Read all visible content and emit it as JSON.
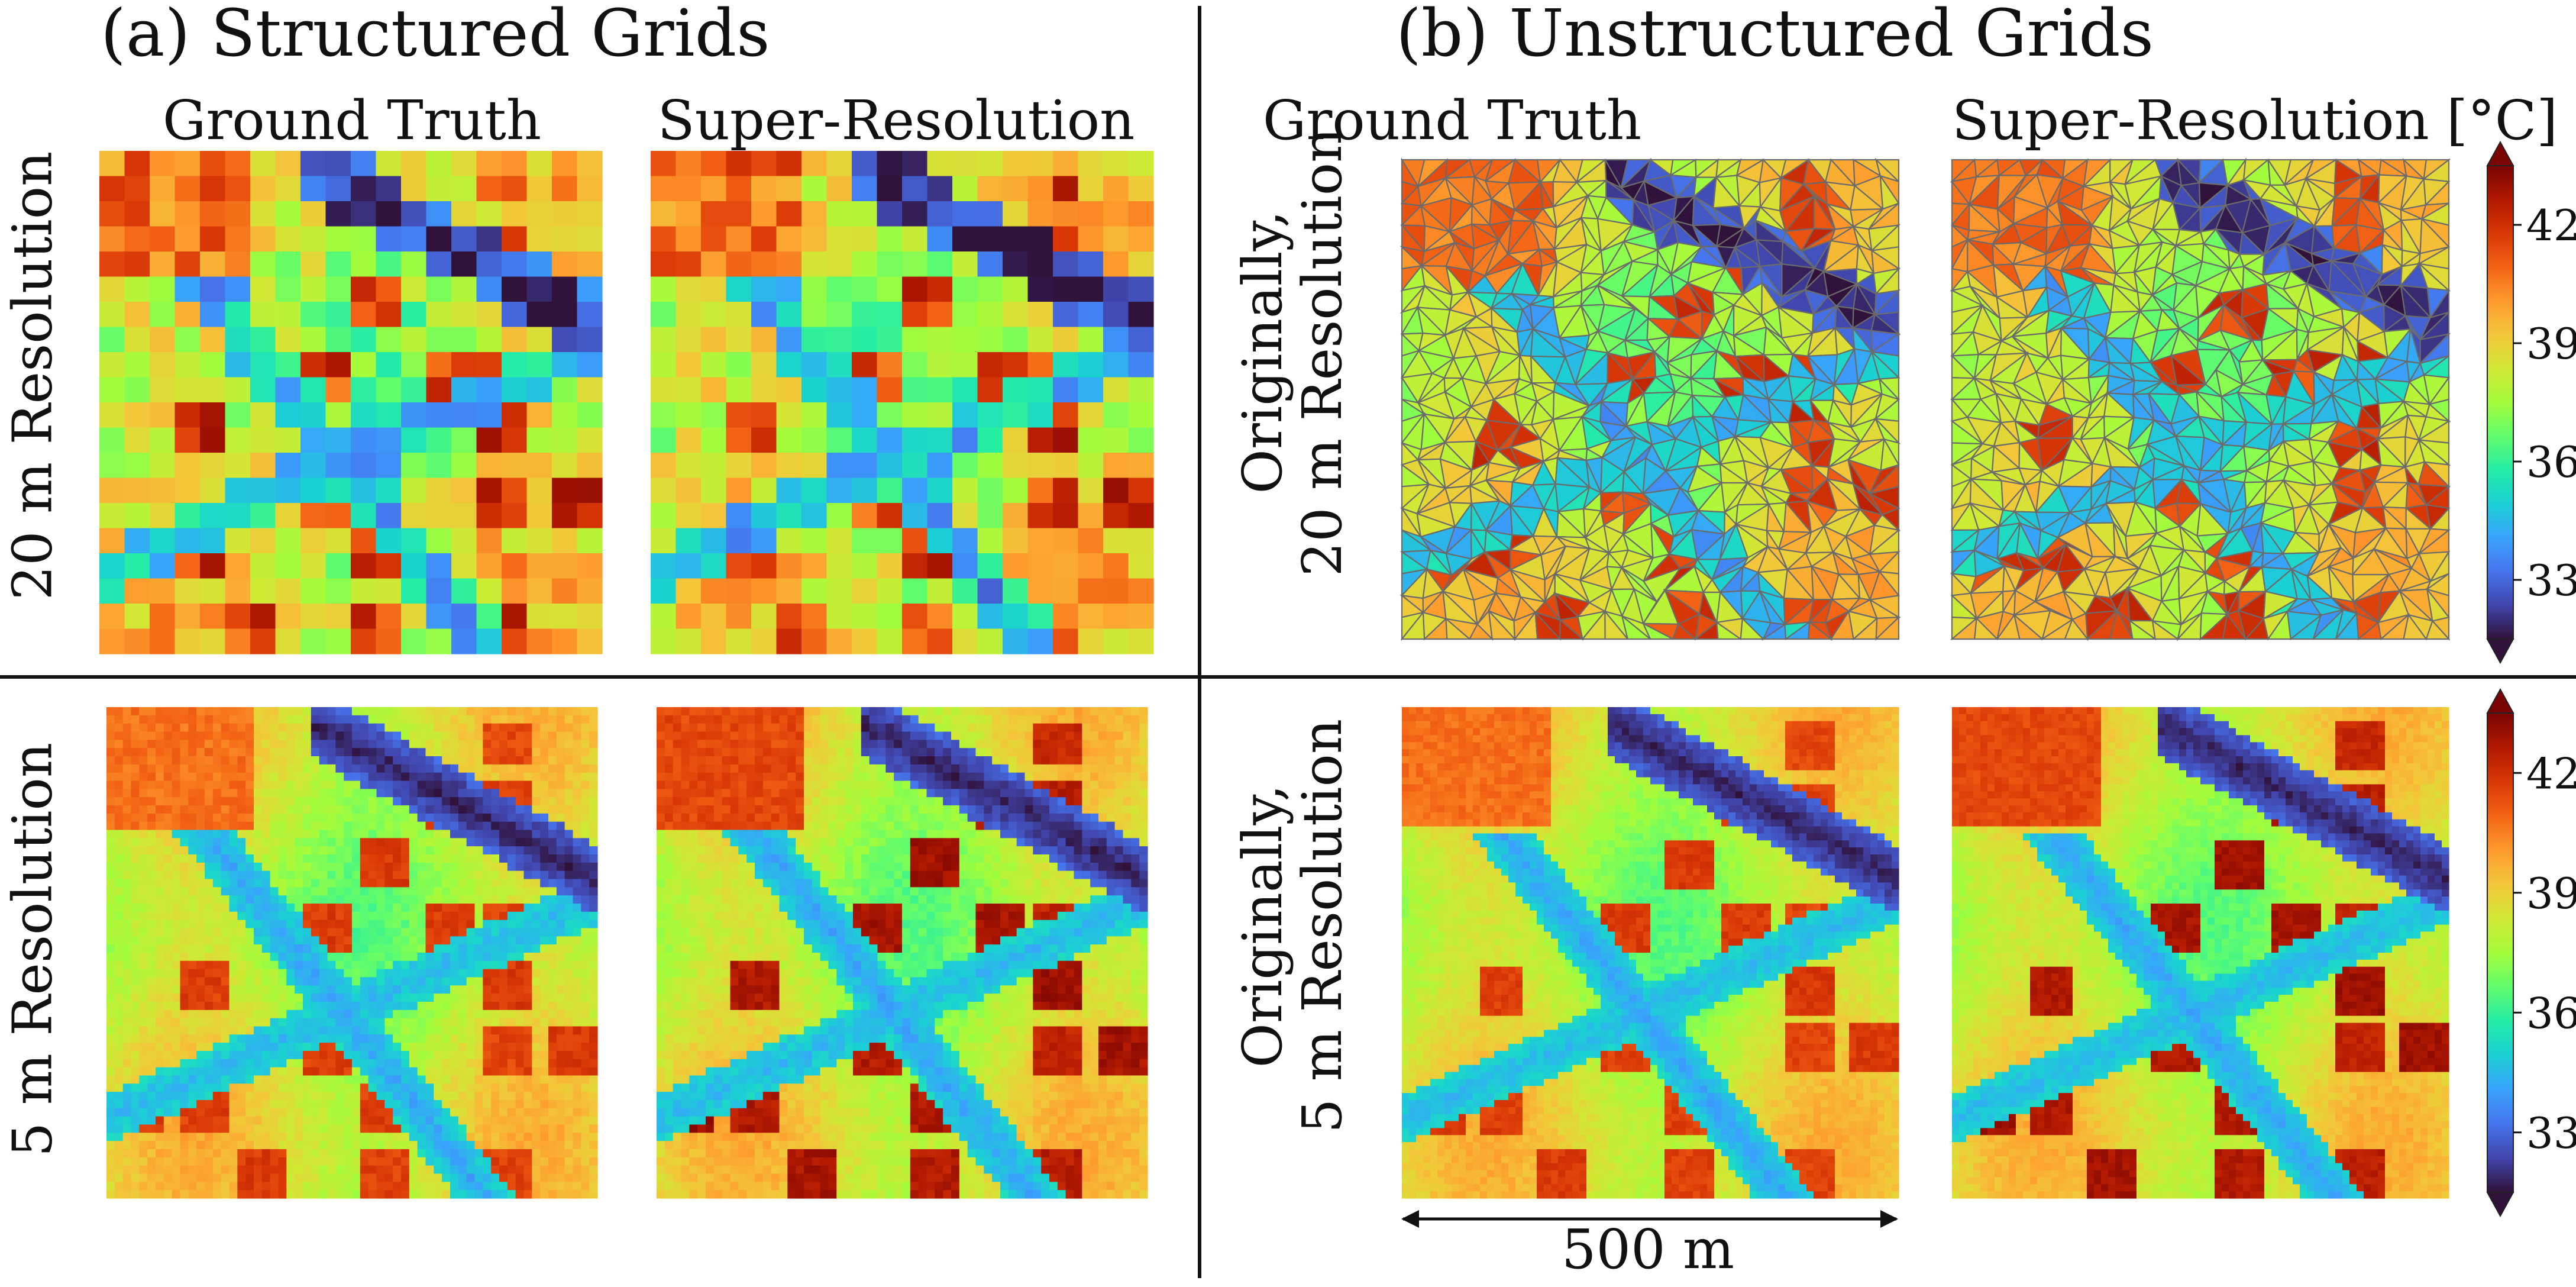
{
  "figure": {
    "section_a_title": "(a) Structured Grids",
    "section_b_title": "(b) Unstructured Grids",
    "col_ground_truth": "Ground Truth",
    "col_super_resolution": "Super-Resolution",
    "col_super_resolution_unit": "Super-Resolution [°C]",
    "row_a1": "20 m Resolution",
    "row_a2": "5 m Resolution",
    "row_b1_line1": "Originally,",
    "row_b1_line2": "20 m Resolution",
    "row_b2_line1": "Originally,",
    "row_b2_line2": "5 m Resolution",
    "scale_label": "500 m"
  },
  "colorbar": {
    "unit": "[°C]",
    "ticks": [
      {
        "label": "42",
        "value": 42
      },
      {
        "label": "39",
        "value": 39
      },
      {
        "label": "36",
        "value": 36
      },
      {
        "label": "33",
        "value": 33
      }
    ],
    "range": [
      31.5,
      43.5
    ],
    "colormap_stops": [
      "#30123b",
      "#4145ab",
      "#4675ed",
      "#39a2fc",
      "#1bcfd4",
      "#24eca6",
      "#61fc6c",
      "#a4fc3b",
      "#d1e834",
      "#f3c63a",
      "#fe9b2d",
      "#f36315",
      "#d93806",
      "#b11901",
      "#7a0403"
    ]
  }
}
